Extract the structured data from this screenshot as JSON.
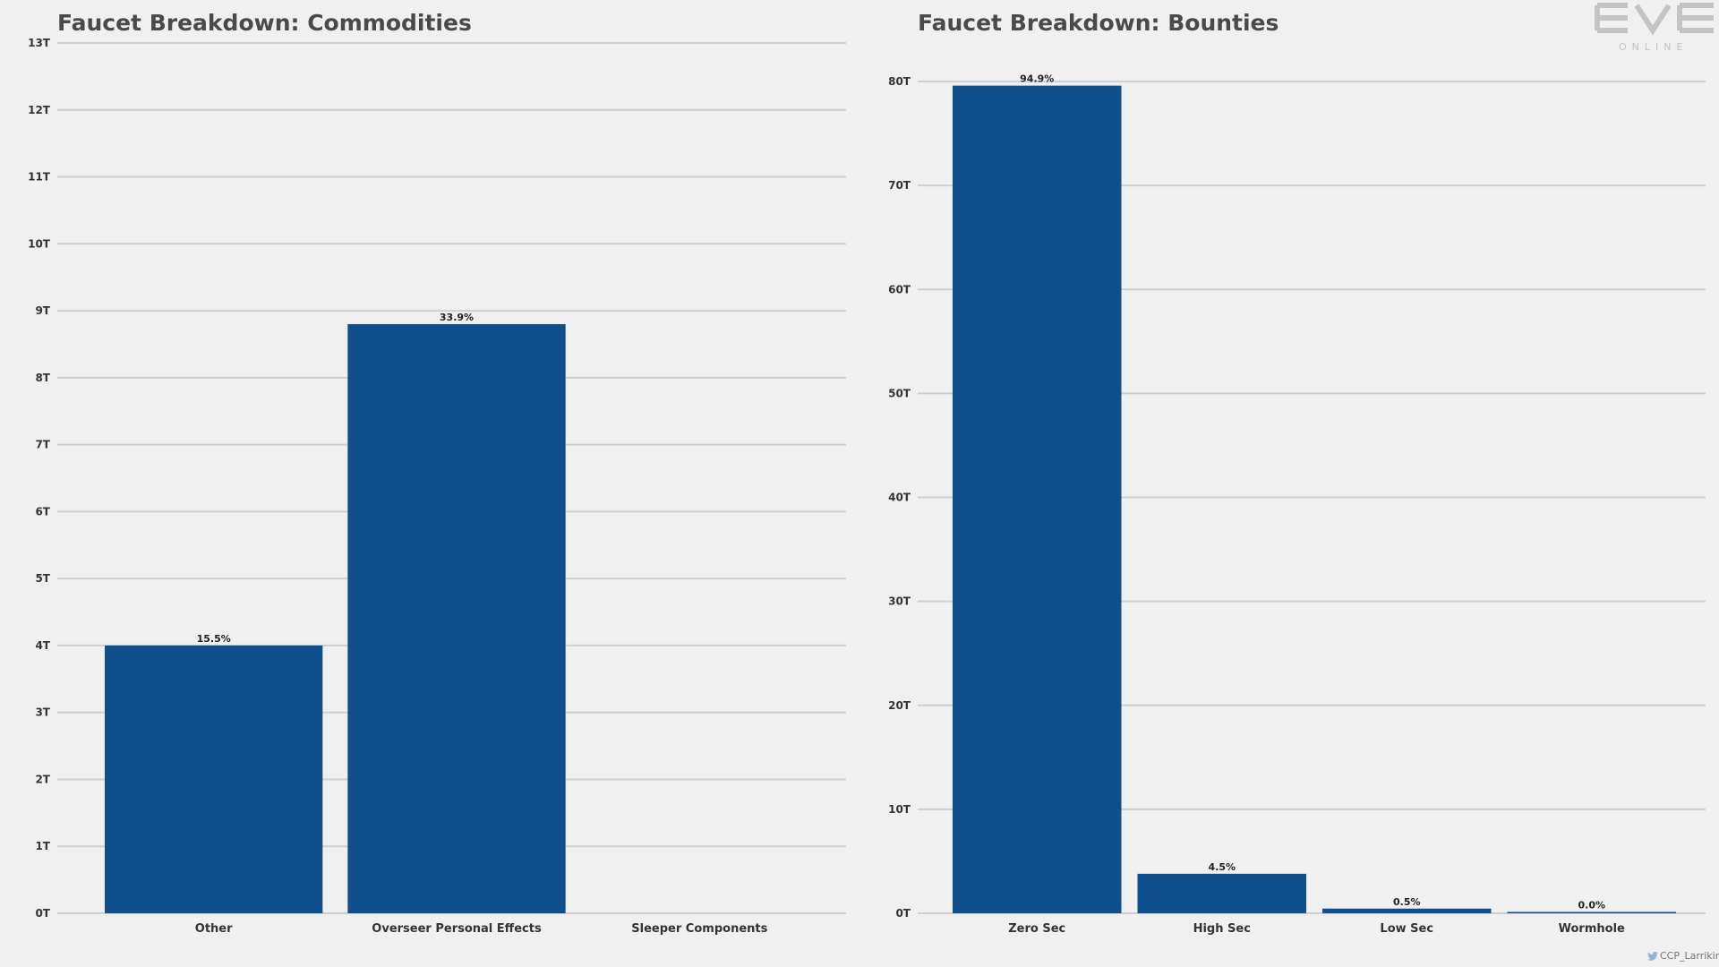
{
  "colors": {
    "background": "#f0f0f0",
    "bar": "#0f4f8b",
    "grid": "#cfcfcf",
    "logo": "#c4c4c4"
  },
  "logo": {
    "word": "EVE",
    "sub": "ONLINE"
  },
  "credit": {
    "icon": "twitter-bird-icon",
    "text": "CCP_Larrikin"
  },
  "chart_data": [
    {
      "type": "bar",
      "title": "Faucet Breakdown: Commodities",
      "categories": [
        "Other",
        "Overseer Personal Effects",
        "Sleeper Components"
      ],
      "values": [
        4.0,
        8.8,
        0
      ],
      "data_labels": [
        "15.5%",
        "33.9%",
        ""
      ],
      "yticks": [
        0,
        1,
        2,
        3,
        4,
        5,
        6,
        7,
        8,
        9,
        10,
        11,
        12,
        13
      ],
      "ytick_labels": [
        "0T",
        "1T",
        "2T",
        "3T",
        "4T",
        "5T",
        "6T",
        "7T",
        "8T",
        "9T",
        "10T",
        "11T",
        "12T",
        "13T"
      ],
      "ylim": [
        0,
        13
      ],
      "unit": "T",
      "grid": true,
      "legend": "none"
    },
    {
      "type": "bar",
      "title": "Faucet Breakdown: Bounties",
      "categories": [
        "Zero Sec",
        "High Sec",
        "Low Sec",
        "Wormhole"
      ],
      "values": [
        79.6,
        3.8,
        0.45,
        0.05
      ],
      "data_labels": [
        "94.9%",
        "4.5%",
        "0.5%",
        "0.0%"
      ],
      "yticks": [
        0,
        10,
        20,
        30,
        40,
        50,
        60,
        70,
        80
      ],
      "ytick_labels": [
        "0T",
        "10T",
        "20T",
        "30T",
        "40T",
        "50T",
        "60T",
        "70T",
        "80T"
      ],
      "ylim": [
        0,
        80
      ],
      "unit": "T",
      "grid": true,
      "legend": "none"
    }
  ]
}
